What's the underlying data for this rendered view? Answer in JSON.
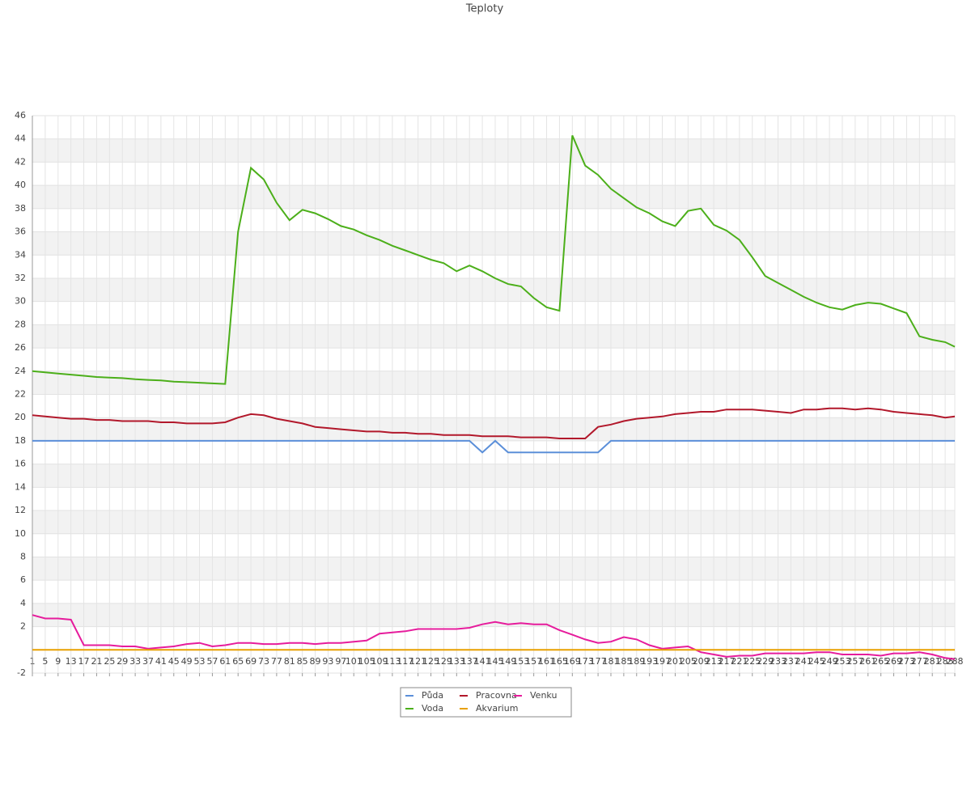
{
  "chart_data": {
    "type": "line",
    "title": "Teploty",
    "x": [
      1,
      5,
      9,
      13,
      17,
      21,
      25,
      29,
      33,
      37,
      41,
      45,
      49,
      53,
      57,
      61,
      65,
      69,
      73,
      77,
      81,
      85,
      89,
      93,
      97,
      101,
      105,
      109,
      113,
      117,
      121,
      125,
      129,
      133,
      137,
      141,
      145,
      149,
      153,
      157,
      161,
      165,
      169,
      173,
      177,
      181,
      185,
      189,
      193,
      197,
      201,
      205,
      209,
      213,
      217,
      221,
      225,
      229,
      233,
      237,
      241,
      245,
      249,
      253,
      257,
      261,
      265,
      269,
      273,
      277,
      281,
      285,
      288
    ],
    "xlim": [
      1,
      288
    ],
    "ylim": [
      -2,
      46
    ],
    "yticks": [
      -2,
      2,
      4,
      6,
      8,
      10,
      12,
      14,
      16,
      18,
      20,
      22,
      24,
      26,
      28,
      30,
      32,
      34,
      36,
      38,
      40,
      42,
      44,
      46
    ],
    "grid": true,
    "legend": "bottom",
    "series": [
      {
        "name": "Půda",
        "color": "#5b8fd9",
        "values": [
          18,
          18,
          18,
          18,
          18,
          18,
          18,
          18,
          18,
          18,
          18,
          18,
          18,
          18,
          18,
          18,
          18,
          18,
          18,
          18,
          18,
          18,
          18,
          18,
          18,
          18,
          18,
          18,
          18,
          18,
          18,
          18,
          18,
          18,
          18,
          17,
          18,
          17,
          17,
          17,
          17,
          17,
          17,
          17,
          17,
          18,
          18,
          18,
          18,
          18,
          18,
          18,
          18,
          18,
          18,
          18,
          18,
          18,
          18,
          18,
          18,
          18,
          18,
          18,
          18,
          18,
          18,
          18,
          18,
          18,
          18,
          18,
          18
        ]
      },
      {
        "name": "Pracovna",
        "color": "#b2182b",
        "values": [
          20.2,
          20.1,
          20.0,
          19.9,
          19.9,
          19.8,
          19.8,
          19.7,
          19.7,
          19.7,
          19.6,
          19.6,
          19.5,
          19.5,
          19.5,
          19.6,
          20.0,
          20.3,
          20.2,
          19.9,
          19.7,
          19.5,
          19.2,
          19.1,
          19.0,
          18.9,
          18.8,
          18.8,
          18.7,
          18.7,
          18.6,
          18.6,
          18.5,
          18.5,
          18.5,
          18.4,
          18.4,
          18.4,
          18.3,
          18.3,
          18.3,
          18.2,
          18.2,
          18.2,
          19.2,
          19.4,
          19.7,
          19.9,
          20.0,
          20.1,
          20.3,
          20.4,
          20.5,
          20.5,
          20.7,
          20.7,
          20.7,
          20.6,
          20.5,
          20.4,
          20.7,
          20.7,
          20.8,
          20.8,
          20.7,
          20.8,
          20.7,
          20.5,
          20.4,
          20.3,
          20.2,
          20.0,
          20.1
        ]
      },
      {
        "name": "Venku",
        "color": "#e61c9c",
        "values": [
          3.0,
          2.7,
          2.7,
          2.6,
          0.4,
          0.4,
          0.4,
          0.3,
          0.3,
          0.1,
          0.2,
          0.3,
          0.5,
          0.6,
          0.3,
          0.4,
          0.6,
          0.6,
          0.5,
          0.5,
          0.6,
          0.6,
          0.5,
          0.6,
          0.6,
          0.7,
          0.8,
          1.4,
          1.5,
          1.6,
          1.8,
          1.8,
          1.8,
          1.8,
          1.9,
          2.2,
          2.4,
          2.2,
          2.3,
          2.2,
          2.2,
          1.7,
          1.3,
          0.9,
          0.6,
          0.7,
          1.1,
          0.9,
          0.4,
          0.1,
          0.2,
          0.3,
          -0.2,
          -0.4,
          -0.6,
          -0.5,
          -0.5,
          -0.3,
          -0.3,
          -0.3,
          -0.3,
          -0.2,
          -0.2,
          -0.4,
          -0.4,
          -0.4,
          -0.5,
          -0.3,
          -0.3,
          -0.2,
          -0.4,
          -0.7,
          -0.8
        ]
      },
      {
        "name": "Voda",
        "color": "#4caf1a",
        "values": [
          24.0,
          23.9,
          23.8,
          23.7,
          23.6,
          23.5,
          23.45,
          23.4,
          23.3,
          23.25,
          23.2,
          23.1,
          23.05,
          23.0,
          22.95,
          22.9,
          36.0,
          41.5,
          40.5,
          38.5,
          37.0,
          37.9,
          37.6,
          37.1,
          36.5,
          36.2,
          35.7,
          35.3,
          34.8,
          34.4,
          34.0,
          33.6,
          33.3,
          32.6,
          33.1,
          32.6,
          32.0,
          31.5,
          31.3,
          30.3,
          29.5,
          29.2,
          44.3,
          41.7,
          40.9,
          39.7,
          38.9,
          38.1,
          37.6,
          36.9,
          36.5,
          37.8,
          38.0,
          36.6,
          36.1,
          35.3,
          33.8,
          32.2,
          31.6,
          31.0,
          30.4,
          29.9,
          29.5,
          29.3,
          29.7,
          29.9,
          29.8,
          29.4,
          29.0,
          27.0,
          26.7,
          26.5,
          26.1
        ]
      },
      {
        "name": "Akvarium",
        "color": "#e8a000",
        "values": [
          0,
          0,
          0,
          0,
          0,
          0,
          0,
          0,
          0,
          0,
          0,
          0,
          0,
          0,
          0,
          0,
          0,
          0,
          0,
          0,
          0,
          0,
          0,
          0,
          0,
          0,
          0,
          0,
          0,
          0,
          0,
          0,
          0,
          0,
          0,
          0,
          0,
          0,
          0,
          0,
          0,
          0,
          0,
          0,
          0,
          0,
          0,
          0,
          0,
          0,
          0,
          0,
          0,
          0,
          0,
          0,
          0,
          0,
          0,
          0,
          0,
          0,
          0,
          0,
          0,
          0,
          0,
          0,
          0,
          0,
          0,
          0,
          0
        ]
      }
    ]
  }
}
